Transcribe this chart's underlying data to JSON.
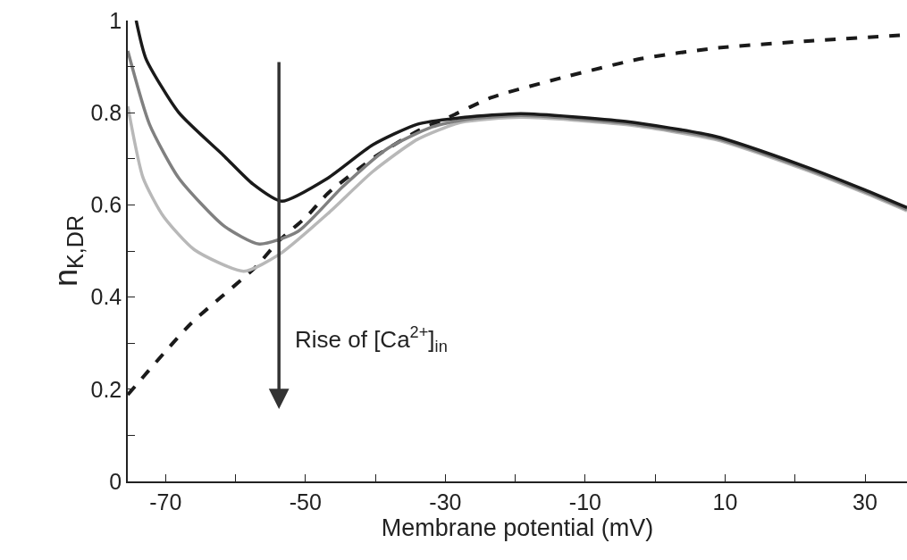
{
  "chart_data": {
    "type": "line",
    "xlabel": "Membrane potential (mV)",
    "ylabel": "n$_{K,DR}$",
    "xlim": [
      -75.4,
      36
    ],
    "ylim": [
      0,
      1
    ],
    "xticks": [
      -70,
      {
        "value": -60,
        "label": null
      },
      -50,
      {
        "value": -40,
        "label": null
      },
      -30,
      {
        "value": -20,
        "label": null
      },
      -10,
      {
        "value": 0,
        "label": null
      },
      10,
      {
        "value": 20,
        "label": null
      },
      30
    ],
    "yticks": [
      0,
      {
        "value": 0.1,
        "label": null
      },
      0.2,
      {
        "value": 0.3,
        "label": null
      },
      0.4,
      {
        "value": 0.5,
        "label": null
      },
      0.6,
      {
        "value": 0.7,
        "label": null
      },
      0.8,
      {
        "value": 0.9,
        "label": null
      },
      1
    ],
    "marker": "none",
    "series": [
      {
        "color": "#1a1a1a",
        "line_style": "dashed",
        "x": [
          -75.4,
          -66.4,
          -57.2,
          -53.8,
          -49.8,
          -46.8,
          -40,
          -34,
          -29.8,
          -23.4,
          -12.8,
          -2.1,
          8.5,
          21.3,
          36
        ],
        "values": [
          0.188,
          0.342,
          0.464,
          0.522,
          0.575,
          0.625,
          0.705,
          0.76,
          0.788,
          0.833,
          0.878,
          0.917,
          0.94,
          0.955,
          0.969
        ]
      },
      {
        "color": "#b8b8b8",
        "line_style": "solid",
        "x": [
          -75.4,
          -73.2,
          -70.3,
          -65.9,
          -58.8,
          -53.7,
          -46.8,
          -40.4,
          -34,
          -27.8,
          -19.2,
          -4.2,
          8.5,
          21.3,
          29.9,
          36
        ],
        "values": [
          0.814,
          0.658,
          0.575,
          0.503,
          0.456,
          0.493,
          0.581,
          0.672,
          0.742,
          0.779,
          0.79,
          0.774,
          0.742,
          0.677,
          0.626,
          0.587
        ]
      },
      {
        "color": "#808080",
        "line_style": "solid",
        "x": [
          -75.4,
          -72.3,
          -68.1,
          -61.7,
          -56.6,
          -51.1,
          -44.7,
          -38.3,
          -31.9,
          -27.2,
          -19.2,
          -4.2,
          8.5,
          21.3,
          29.9,
          36
        ],
        "values": [
          0.934,
          0.775,
          0.658,
          0.555,
          0.515,
          0.542,
          0.639,
          0.722,
          0.769,
          0.785,
          0.794,
          0.777,
          0.745,
          0.68,
          0.629,
          0.59
        ]
      },
      {
        "color": "#1a1a1a",
        "line_style": "solid",
        "x": [
          -74.2,
          -72.8,
          -68.1,
          -61.7,
          -57.5,
          -53.4,
          -46.8,
          -40.4,
          -34,
          -27.2,
          -19.2,
          -4.2,
          8.5,
          21.3,
          29.9,
          36
        ],
        "values": [
          1.0,
          0.917,
          0.8,
          0.707,
          0.645,
          0.608,
          0.658,
          0.73,
          0.775,
          0.79,
          0.798,
          0.781,
          0.749,
          0.684,
          0.633,
          0.594
        ]
      }
    ],
    "annotations": [
      "Rise of [Ca$^{2+}$]$_{in}$"
    ]
  }
}
